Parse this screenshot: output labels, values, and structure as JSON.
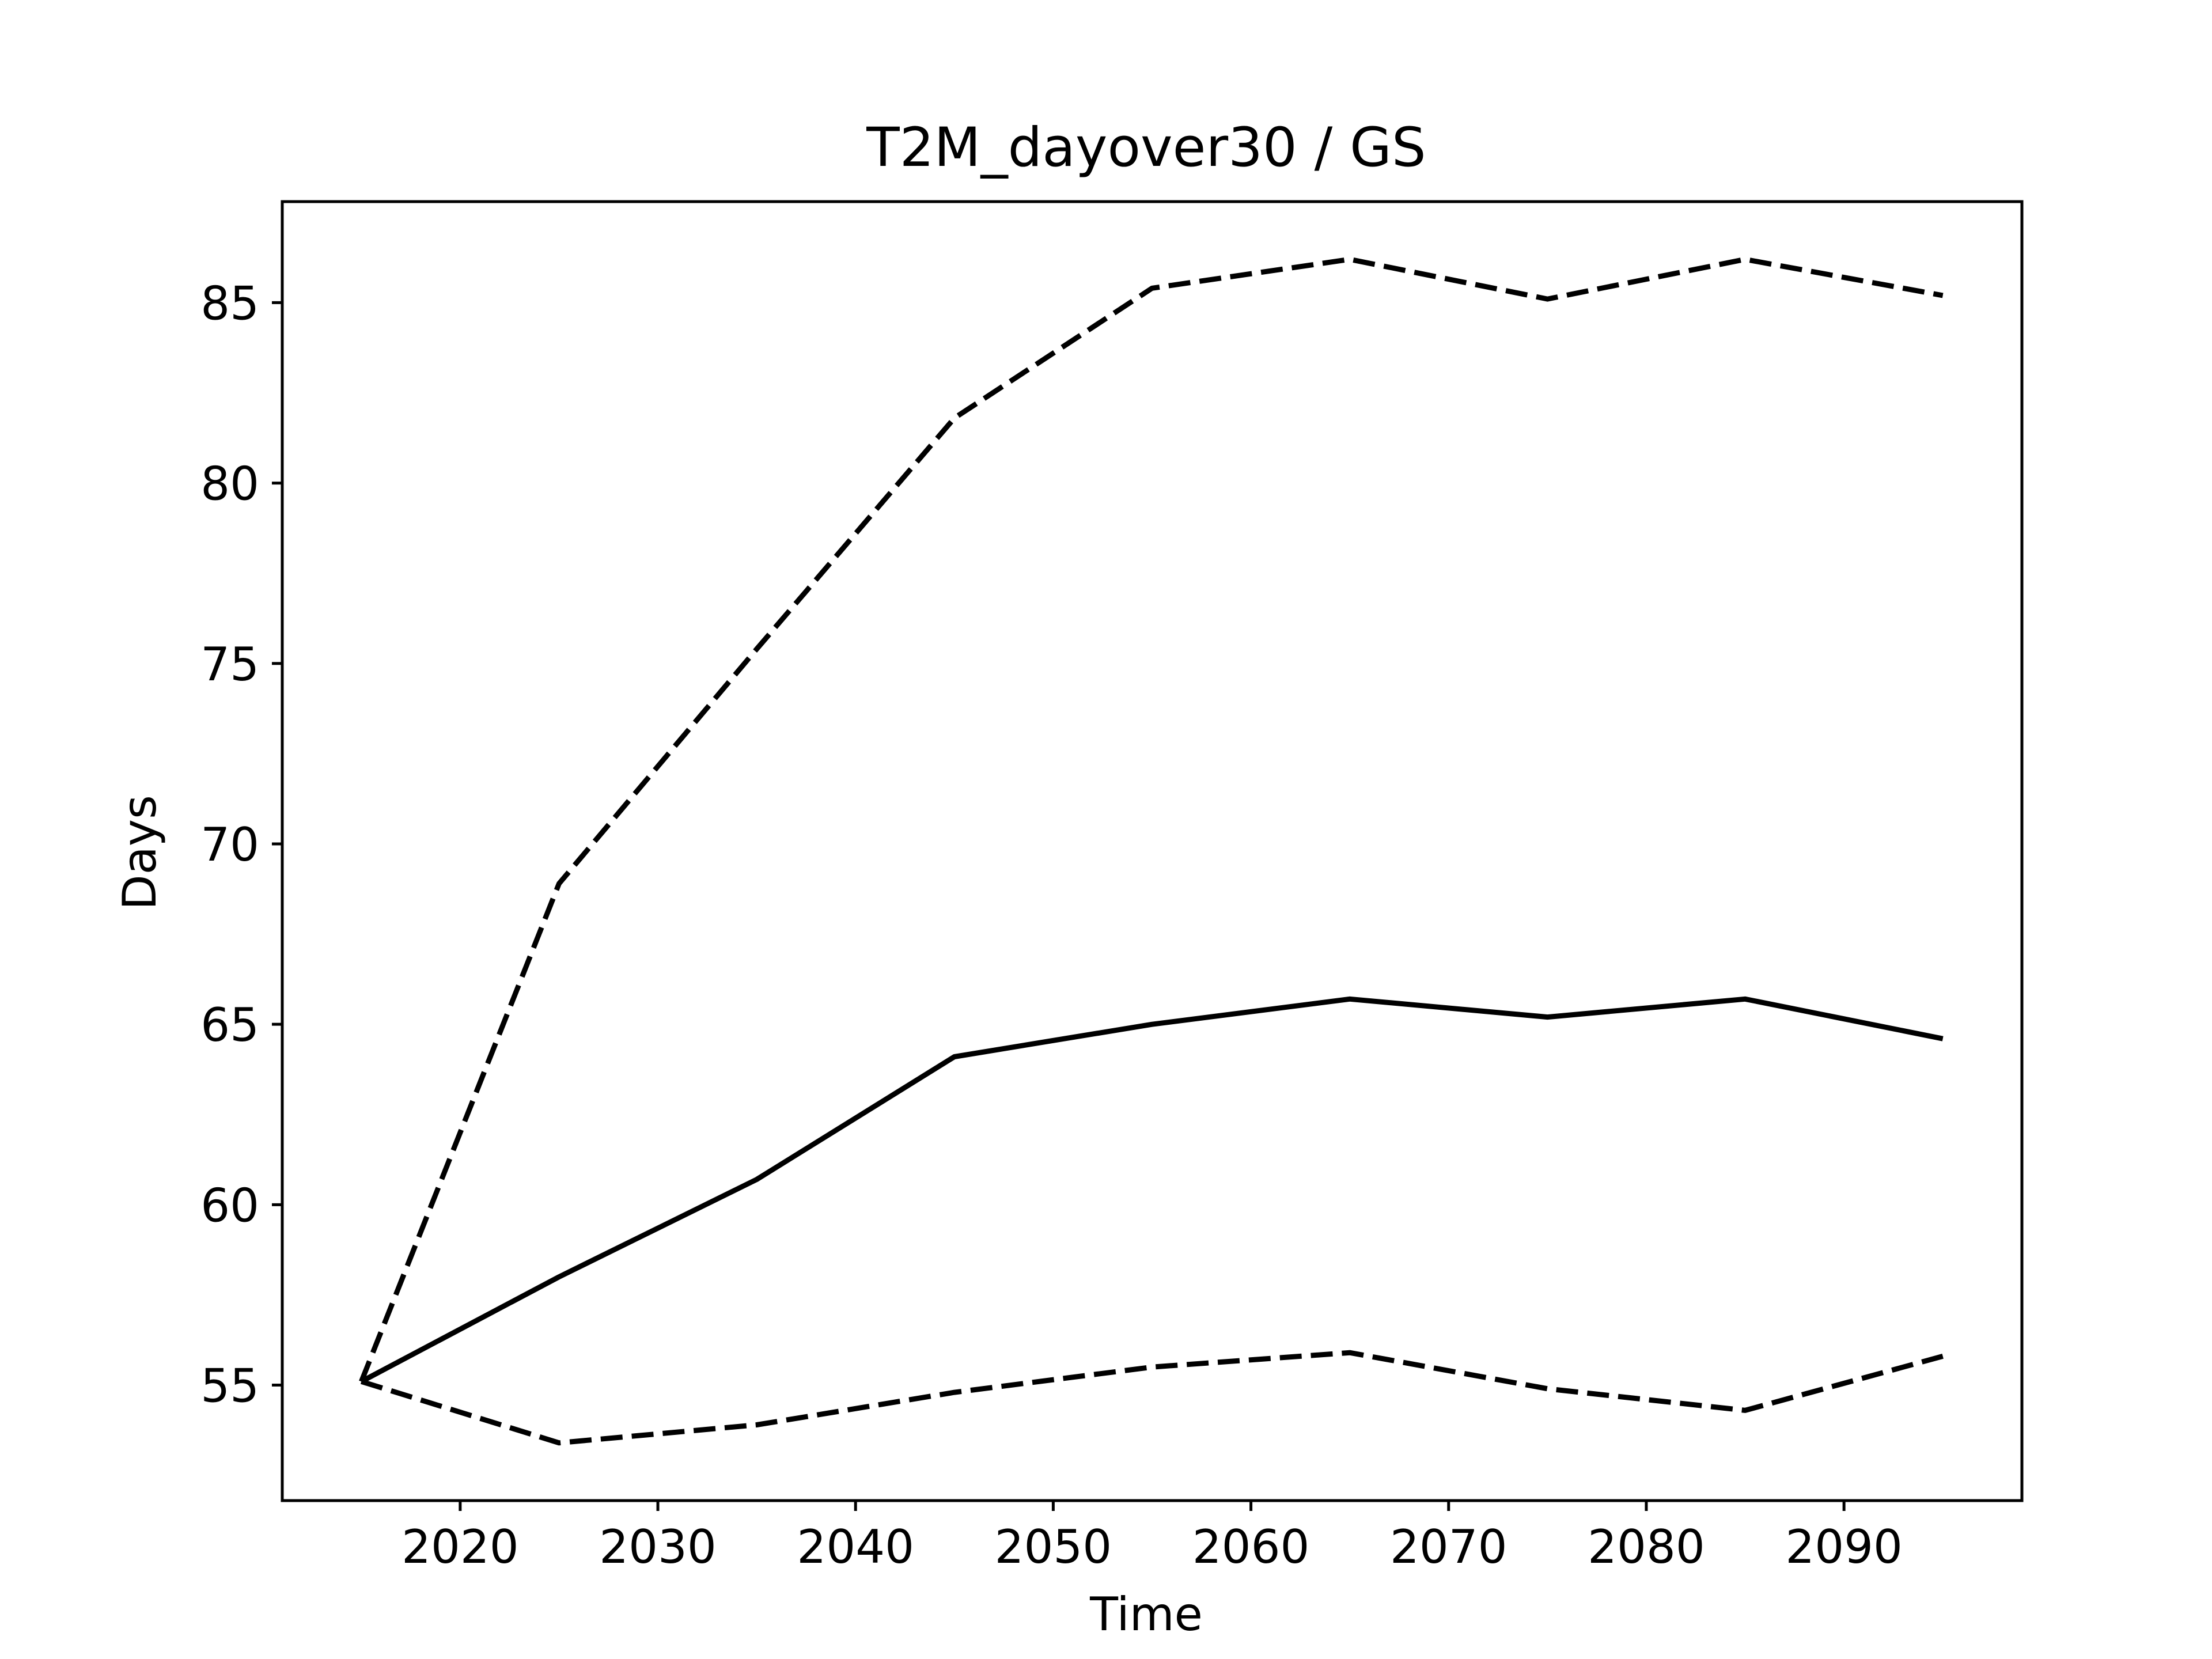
{
  "chart_data": {
    "type": "line",
    "title": "T2M_dayover30 / GS",
    "xlabel": "Time",
    "ylabel": "Days",
    "x": [
      2015,
      2025,
      2035,
      2045,
      2055,
      2065,
      2075,
      2085,
      2095
    ],
    "xlim": [
      2011.0,
      2099.0
    ],
    "ylim": [
      51.8,
      87.8
    ],
    "xticks": [
      2020,
      2030,
      2040,
      2050,
      2060,
      2070,
      2080,
      2090
    ],
    "xtick_labels": [
      "2020",
      "2030",
      "2040",
      "2050",
      "2060",
      "2070",
      "2080",
      "2090"
    ],
    "yticks": [
      55,
      60,
      65,
      70,
      75,
      80,
      85
    ],
    "ytick_labels": [
      "55",
      "60",
      "65",
      "70",
      "75",
      "80",
      "85"
    ],
    "grid": false,
    "legend": "none",
    "series": [
      {
        "style": "dashed",
        "color": "#000000",
        "values": [
          55.1,
          68.9,
          75.4,
          81.8,
          85.4,
          86.2,
          85.1,
          86.2,
          85.2
        ]
      },
      {
        "style": "solid",
        "color": "#000000",
        "values": [
          55.1,
          58.0,
          60.7,
          64.1,
          65.0,
          65.7,
          65.2,
          65.7,
          64.6
        ]
      },
      {
        "style": "dashed",
        "color": "#000000",
        "values": [
          55.1,
          53.4,
          53.9,
          54.8,
          55.5,
          55.9,
          54.9,
          54.3,
          55.8
        ]
      }
    ]
  }
}
